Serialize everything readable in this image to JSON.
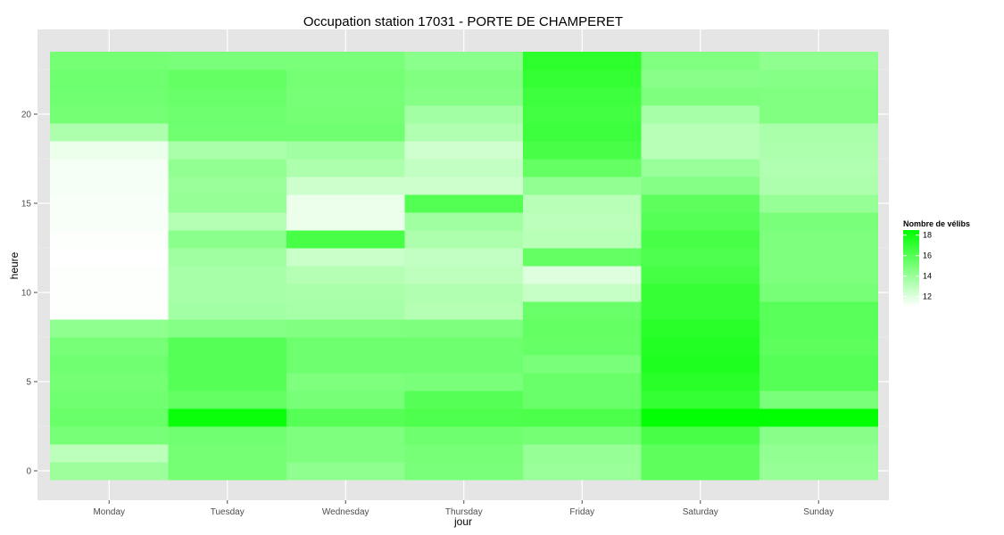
{
  "chart_data": {
    "type": "heatmap",
    "title": "Occupation station 17031 - PORTE DE CHAMPERET",
    "xlabel": "jour",
    "ylabel": "heure",
    "x_categories": [
      "Monday",
      "Tuesday",
      "Wednesday",
      "Thursday",
      "Friday",
      "Saturday",
      "Sunday"
    ],
    "y_ticks": [
      0,
      5,
      10,
      15,
      20
    ],
    "ylim": [
      -0.5,
      23.5
    ],
    "hours": [
      0,
      1,
      2,
      3,
      4,
      5,
      6,
      7,
      8,
      9,
      10,
      11,
      12,
      13,
      14,
      15,
      16,
      17,
      18,
      19,
      20,
      21,
      22,
      23
    ],
    "values": [
      [
        13.9,
        13.0,
        15.0,
        15.4,
        15.2,
        15.1,
        15.2,
        15.0,
        14.3,
        11.1,
        11.1,
        11.1,
        11.0,
        11.1,
        11.2,
        11.2,
        11.3,
        11.3,
        11.6,
        13.4,
        15.1,
        15.2,
        15.3,
        15.1
      ],
      [
        15.1,
        15.1,
        15.2,
        18.2,
        15.6,
        16.0,
        16.0,
        16.0,
        14.6,
        13.7,
        13.6,
        13.6,
        13.8,
        14.4,
        13.2,
        14.1,
        14.0,
        14.2,
        13.5,
        15.2,
        15.3,
        15.4,
        15.6,
        14.9
      ],
      [
        14.3,
        14.8,
        14.8,
        16.0,
        15.0,
        14.8,
        15.3,
        15.3,
        14.7,
        13.6,
        13.5,
        13.2,
        12.6,
        16.4,
        11.6,
        11.6,
        12.5,
        13.4,
        13.8,
        15.2,
        15.1,
        15.0,
        15.1,
        14.9
      ],
      [
        14.9,
        15.0,
        15.3,
        16.2,
        16.0,
        14.9,
        15.3,
        15.3,
        14.8,
        13.2,
        13.3,
        12.9,
        12.8,
        13.4,
        13.8,
        16.1,
        12.5,
        12.8,
        12.4,
        13.3,
        13.7,
        14.6,
        14.7,
        14.4
      ],
      [
        14.0,
        14.1,
        15.1,
        16.3,
        15.4,
        15.4,
        14.9,
        15.5,
        15.6,
        15.4,
        12.7,
        12.0,
        15.6,
        13.1,
        13.0,
        13.1,
        14.2,
        15.6,
        16.4,
        16.7,
        16.6,
        16.7,
        17.0,
        17.2
      ],
      [
        15.8,
        15.8,
        16.4,
        18.4,
        17.0,
        17.3,
        17.6,
        17.5,
        17.3,
        16.9,
        16.9,
        16.5,
        16.2,
        16.4,
        16.0,
        15.8,
        14.6,
        14.0,
        13.1,
        13.1,
        13.6,
        14.8,
        14.5,
        14.7
      ],
      [
        14.1,
        14.2,
        14.5,
        18.5,
        14.9,
        16.0,
        16.0,
        15.8,
        15.9,
        15.9,
        15.0,
        14.8,
        14.8,
        14.8,
        14.9,
        14.1,
        13.4,
        13.3,
        13.4,
        13.5,
        14.7,
        14.7,
        14.6,
        14.3
      ]
    ],
    "legend": {
      "title": "Nombre de vélibs",
      "ticks": [
        12,
        14,
        16,
        18
      ],
      "range": [
        11,
        18.5
      ],
      "color_low": "#ffffff",
      "color_high": "#00ff00"
    },
    "panel_background": "#e5e5e5",
    "grid_color": "#ffffff",
    "grid": true,
    "legend_position": "right"
  }
}
